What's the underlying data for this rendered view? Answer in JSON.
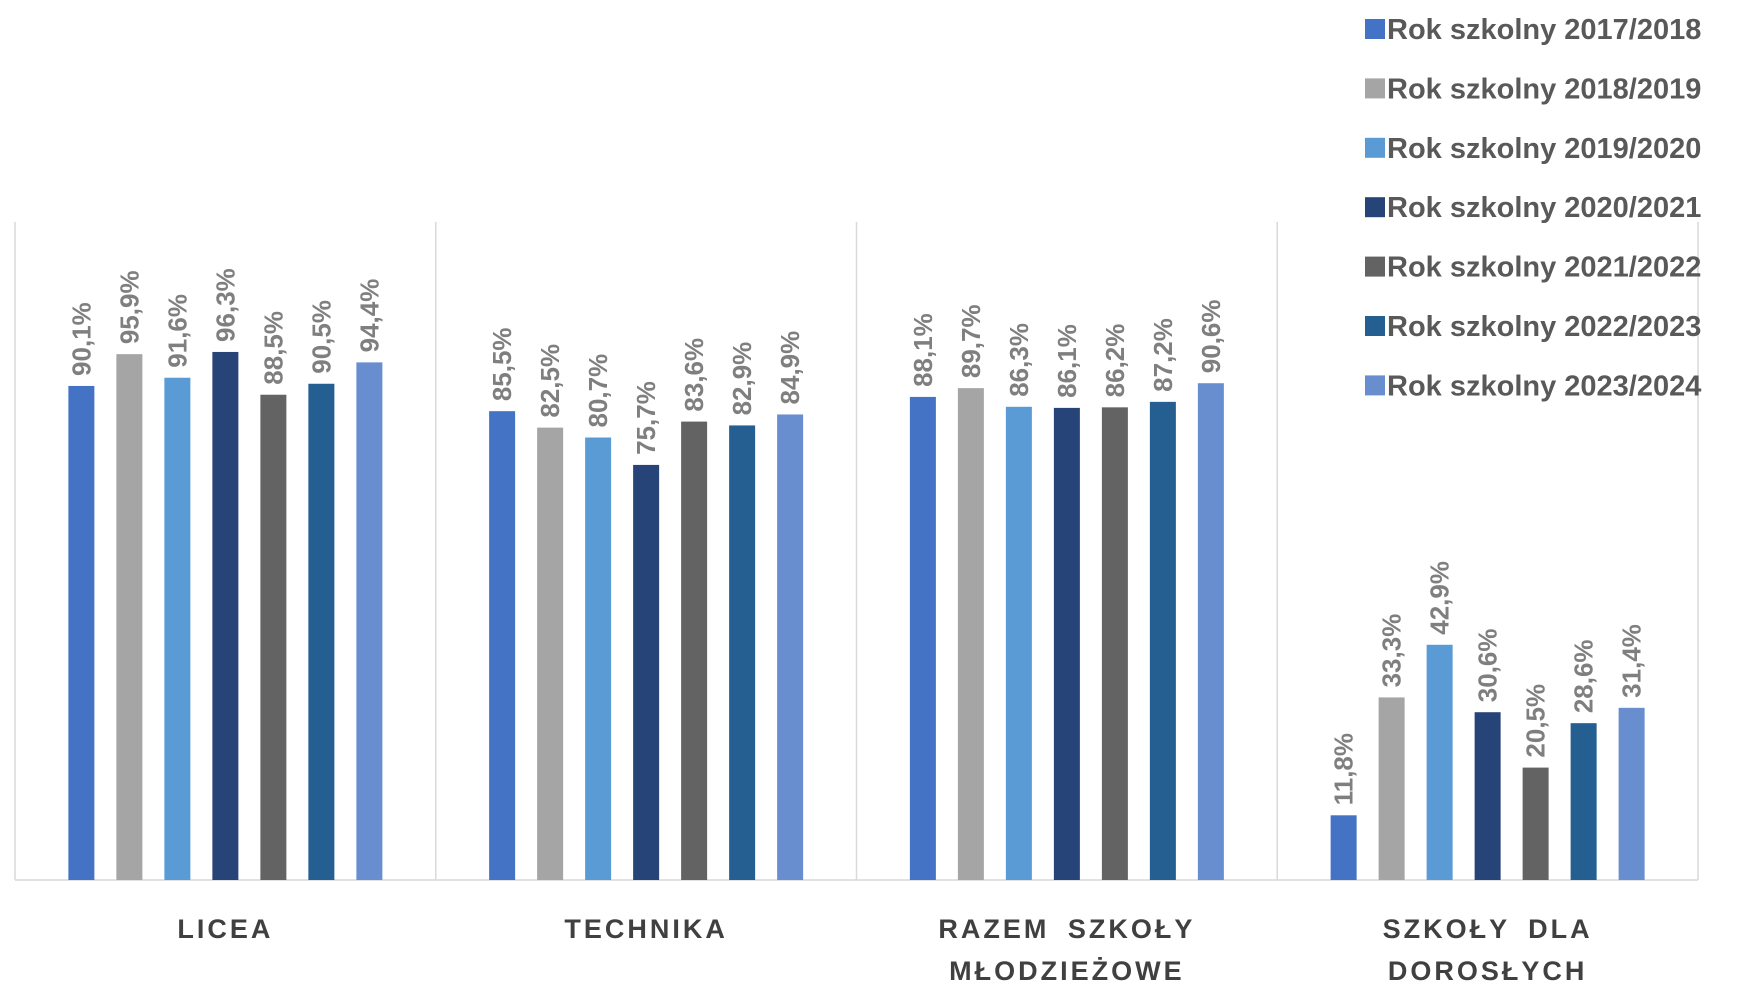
{
  "chart_data": {
    "type": "bar",
    "categories": [
      "LICEA",
      "TECHNIKA",
      "RAZEM SZKOŁY MŁODZIEŻOWE",
      "SZKOŁY DLA DOROSŁYCH"
    ],
    "ylim": [
      0,
      120
    ],
    "legend": "top-right",
    "series": [
      {
        "name": "Rok szkolny 2017/2018",
        "color": "#4472c4",
        "values": [
          90.1,
          85.5,
          88.1,
          11.8
        ],
        "value_labels": [
          "90,1%",
          "85,5%",
          "88,1%",
          "11,8%"
        ]
      },
      {
        "name": "Rok szkolny 2018/2019",
        "color": "#a5a5a5",
        "values": [
          95.9,
          82.5,
          89.7,
          33.3
        ],
        "value_labels": [
          "95,9%",
          "82,5%",
          "89,7%",
          "33,3%"
        ]
      },
      {
        "name": "Rok szkolny 2019/2020",
        "color": "#5b9bd5",
        "values": [
          91.6,
          80.7,
          86.3,
          42.9
        ],
        "value_labels": [
          "91,6%",
          "80,7%",
          "86,3%",
          "42,9%"
        ]
      },
      {
        "name": "Rok szkolny 2020/2021",
        "color": "#264478",
        "values": [
          96.3,
          75.7,
          86.1,
          30.6
        ],
        "value_labels": [
          "96,3%",
          "75,7%",
          "86,1%",
          "30,6%"
        ]
      },
      {
        "name": "Rok szkolny 2021/2022",
        "color": "#636363",
        "values": [
          88.5,
          83.6,
          86.2,
          20.5
        ],
        "value_labels": [
          "88,5%",
          "83,6%",
          "86,2%",
          "20,5%"
        ]
      },
      {
        "name": "Rok szkolny 2022/2023",
        "color": "#255e91",
        "values": [
          90.5,
          82.9,
          87.2,
          28.6
        ],
        "value_labels": [
          "90,5%",
          "82,9%",
          "87,2%",
          "28,6%"
        ]
      },
      {
        "name": "Rok szkolny 2023/2024",
        "color": "#698ed0",
        "values": [
          94.4,
          84.9,
          90.6,
          31.4
        ],
        "value_labels": [
          "94,4%",
          "84,9%",
          "90,6%",
          "31,4%"
        ]
      }
    ]
  }
}
